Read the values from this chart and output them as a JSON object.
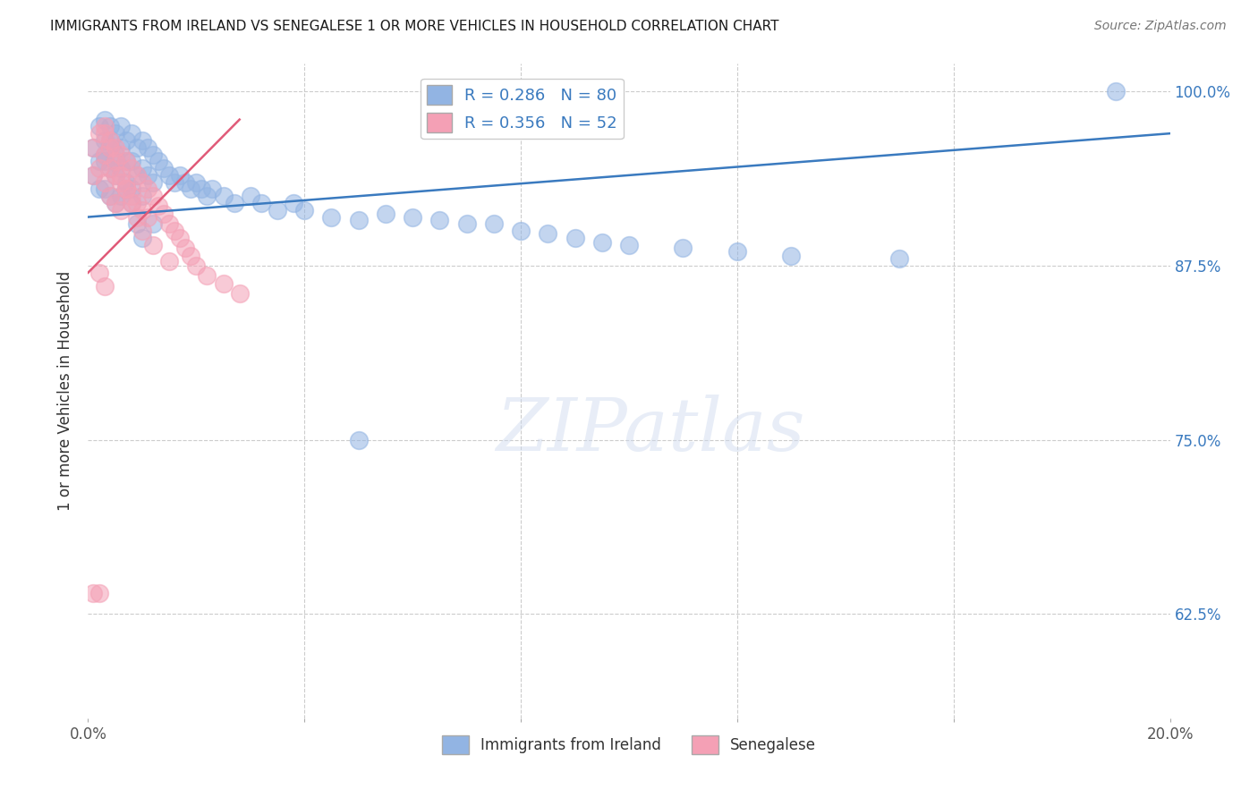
{
  "title": "IMMIGRANTS FROM IRELAND VS SENEGALESE 1 OR MORE VEHICLES IN HOUSEHOLD CORRELATION CHART",
  "source": "Source: ZipAtlas.com",
  "ylabel": "1 or more Vehicles in Household",
  "xlim": [
    0.0,
    0.2
  ],
  "ylim": [
    0.55,
    1.02
  ],
  "yticks": [
    0.625,
    0.75,
    0.875,
    1.0
  ],
  "ytick_labels": [
    "62.5%",
    "75.0%",
    "87.5%",
    "100.0%"
  ],
  "xticks": [
    0.0,
    0.04,
    0.08,
    0.12,
    0.16,
    0.2
  ],
  "xtick_labels": [
    "0.0%",
    "",
    "",
    "",
    "",
    "20.0%"
  ],
  "legend_ireland_label": "Immigrants from Ireland",
  "legend_senegalese_label": "Senegalese",
  "ireland_R": 0.286,
  "ireland_N": 80,
  "senegalese_R": 0.356,
  "senegalese_N": 52,
  "ireland_color": "#92b4e3",
  "senegalese_color": "#f4a0b5",
  "ireland_line_color": "#3a7abf",
  "senegalese_line_color": "#e05a78",
  "background_color": "#ffffff",
  "grid_color": "#cccccc",
  "ireland_x": [
    0.001,
    0.001,
    0.002,
    0.002,
    0.002,
    0.003,
    0.003,
    0.003,
    0.003,
    0.004,
    0.004,
    0.004,
    0.004,
    0.005,
    0.005,
    0.005,
    0.005,
    0.006,
    0.006,
    0.006,
    0.006,
    0.007,
    0.007,
    0.007,
    0.008,
    0.008,
    0.008,
    0.009,
    0.009,
    0.01,
    0.01,
    0.01,
    0.011,
    0.011,
    0.012,
    0.012,
    0.013,
    0.014,
    0.015,
    0.016,
    0.017,
    0.018,
    0.019,
    0.02,
    0.021,
    0.022,
    0.023,
    0.025,
    0.027,
    0.03,
    0.032,
    0.035,
    0.038,
    0.04,
    0.045,
    0.05,
    0.055,
    0.06,
    0.065,
    0.07,
    0.075,
    0.08,
    0.085,
    0.09,
    0.095,
    0.1,
    0.11,
    0.12,
    0.13,
    0.15,
    0.003,
    0.004,
    0.005,
    0.007,
    0.008,
    0.009,
    0.01,
    0.012,
    0.19,
    0.05
  ],
  "ireland_y": [
    0.96,
    0.94,
    0.975,
    0.95,
    0.93,
    0.98,
    0.965,
    0.95,
    0.93,
    0.975,
    0.96,
    0.945,
    0.925,
    0.97,
    0.955,
    0.94,
    0.92,
    0.975,
    0.96,
    0.945,
    0.925,
    0.965,
    0.95,
    0.93,
    0.97,
    0.95,
    0.93,
    0.96,
    0.94,
    0.965,
    0.945,
    0.925,
    0.96,
    0.94,
    0.955,
    0.935,
    0.95,
    0.945,
    0.94,
    0.935,
    0.94,
    0.935,
    0.93,
    0.935,
    0.93,
    0.925,
    0.93,
    0.925,
    0.92,
    0.925,
    0.92,
    0.915,
    0.92,
    0.915,
    0.91,
    0.908,
    0.912,
    0.91,
    0.908,
    0.905,
    0.905,
    0.9,
    0.898,
    0.895,
    0.892,
    0.89,
    0.888,
    0.885,
    0.882,
    0.88,
    0.955,
    0.965,
    0.95,
    0.935,
    0.92,
    0.905,
    0.895,
    0.905,
    1.0,
    0.75
  ],
  "senegalese_x": [
    0.001,
    0.001,
    0.002,
    0.002,
    0.003,
    0.003,
    0.003,
    0.004,
    0.004,
    0.004,
    0.005,
    0.005,
    0.005,
    0.006,
    0.006,
    0.006,
    0.007,
    0.007,
    0.008,
    0.008,
    0.009,
    0.009,
    0.01,
    0.01,
    0.011,
    0.011,
    0.012,
    0.013,
    0.014,
    0.015,
    0.016,
    0.017,
    0.018,
    0.019,
    0.02,
    0.022,
    0.025,
    0.028,
    0.003,
    0.004,
    0.005,
    0.006,
    0.007,
    0.008,
    0.009,
    0.01,
    0.012,
    0.015,
    0.002,
    0.003,
    0.001,
    0.002
  ],
  "senegalese_y": [
    0.96,
    0.94,
    0.97,
    0.945,
    0.975,
    0.955,
    0.935,
    0.965,
    0.945,
    0.925,
    0.96,
    0.94,
    0.92,
    0.955,
    0.935,
    0.915,
    0.95,
    0.93,
    0.945,
    0.925,
    0.94,
    0.92,
    0.935,
    0.915,
    0.93,
    0.91,
    0.925,
    0.918,
    0.912,
    0.905,
    0.9,
    0.895,
    0.888,
    0.882,
    0.875,
    0.868,
    0.862,
    0.855,
    0.97,
    0.96,
    0.95,
    0.94,
    0.93,
    0.92,
    0.91,
    0.9,
    0.89,
    0.878,
    0.87,
    0.86,
    0.64,
    0.64
  ],
  "ireland_line_x": [
    0.0,
    0.2
  ],
  "ireland_line_y": [
    0.91,
    0.97
  ],
  "senegalese_line_x": [
    0.0,
    0.028
  ],
  "senegalese_line_y": [
    0.87,
    0.98
  ]
}
